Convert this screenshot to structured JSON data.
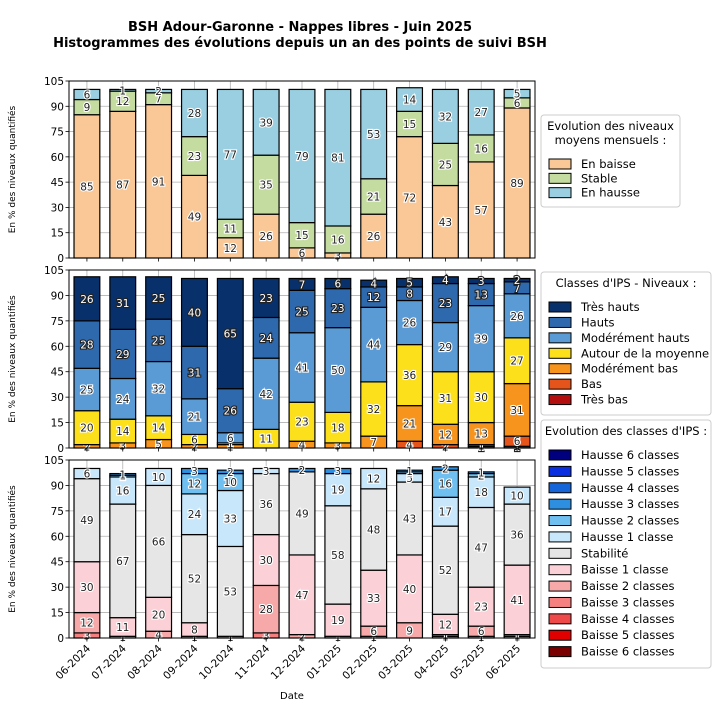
{
  "title_line1": "BSH Adour-Garonne - Nappes libres - Juin 2025",
  "title_line2": "Histogrammes des évolutions depuis un an des points de suivi BSH",
  "chart_data": [
    {
      "type": "bar",
      "stacked": true,
      "ylabel": "En % des niveaux quantifiés",
      "ylim": [
        0,
        105
      ],
      "yticks": [
        0,
        15,
        30,
        45,
        60,
        75,
        90,
        105
      ],
      "grid": true,
      "legend_title": "Evolution des niveaux\nmoyens mensuels :",
      "legend_position": "right",
      "categories": [
        "06-2024",
        "07-2024",
        "08-2024",
        "09-2024",
        "10-2024",
        "11-2024",
        "12-2024",
        "01-2025",
        "02-2025",
        "03-2025",
        "04-2025",
        "05-2025",
        "06-2025"
      ],
      "series": [
        {
          "name": "En baisse",
          "color": "#f9c896",
          "values": [
            85,
            87,
            91,
            49,
            12,
            26,
            6,
            3,
            26,
            72,
            43,
            57,
            89
          ]
        },
        {
          "name": "Stable",
          "color": "#c5dca0",
          "values": [
            9,
            12,
            7,
            23,
            11,
            35,
            15,
            16,
            21,
            15,
            25,
            16,
            6
          ]
        },
        {
          "name": "En hausse",
          "color": "#99cfe0",
          "values": [
            6,
            1,
            2,
            28,
            77,
            39,
            79,
            81,
            53,
            14,
            32,
            27,
            5
          ]
        }
      ]
    },
    {
      "type": "bar",
      "stacked": true,
      "ylabel": "En % des niveaux quantifiés",
      "ylim": [
        0,
        105
      ],
      "yticks": [
        0,
        15,
        30,
        45,
        60,
        75,
        90,
        105
      ],
      "grid": true,
      "legend_title": "Classes d'IPS - Niveaux :",
      "legend_position": "right",
      "categories": [
        "06-2024",
        "07-2024",
        "08-2024",
        "09-2024",
        "10-2024",
        "11-2024",
        "12-2024",
        "01-2025",
        "02-2025",
        "03-2025",
        "04-2025",
        "05-2025",
        "06-2025"
      ],
      "series": [
        {
          "name": "Très bas",
          "color": "#b40f0f",
          "values": [
            0,
            0,
            0,
            0,
            0,
            0,
            0,
            0,
            0,
            0,
            0,
            1,
            1
          ]
        },
        {
          "name": "Bas",
          "color": "#e4541b",
          "values": [
            0,
            0,
            0,
            0,
            0,
            0,
            0,
            0,
            0,
            4,
            2,
            1,
            6
          ]
        },
        {
          "name": "Modérément bas",
          "color": "#f7941d",
          "values": [
            2,
            3,
            5,
            2,
            2,
            0,
            4,
            3,
            7,
            21,
            12,
            13,
            31
          ]
        },
        {
          "name": "Autour de la moyenne",
          "color": "#fde01c",
          "values": [
            20,
            14,
            14,
            6,
            1,
            11,
            23,
            18,
            32,
            36,
            31,
            30,
            27
          ]
        },
        {
          "name": "Modérément hauts",
          "color": "#5a9bd5",
          "values": [
            25,
            24,
            32,
            21,
            6,
            42,
            41,
            50,
            44,
            26,
            29,
            39,
            26
          ]
        },
        {
          "name": "Hauts",
          "color": "#2f69ad",
          "values": [
            28,
            29,
            25,
            31,
            26,
            24,
            25,
            23,
            12,
            8,
            23,
            13,
            7
          ]
        },
        {
          "name": "Très hauts",
          "color": "#08306b",
          "values": [
            26,
            31,
            25,
            40,
            65,
            23,
            7,
            6,
            4,
            5,
            4,
            3,
            2
          ]
        }
      ]
    },
    {
      "type": "bar",
      "stacked": true,
      "xlabel": "Date",
      "ylabel": "En % des niveaux quantifiés",
      "ylim": [
        0,
        105
      ],
      "yticks": [
        0,
        15,
        30,
        45,
        60,
        75,
        90,
        105
      ],
      "grid": true,
      "legend_title": "Evolution des classes d'IPS :",
      "legend_position": "right",
      "categories": [
        "06-2024",
        "07-2024",
        "08-2024",
        "09-2024",
        "10-2024",
        "11-2024",
        "12-2024",
        "01-2025",
        "02-2025",
        "03-2025",
        "04-2025",
        "05-2025",
        "06-2025"
      ],
      "series": [
        {
          "name": "Baisse 6 classes",
          "color": "#7a0000",
          "values": [
            0,
            0,
            0,
            0,
            0,
            0,
            0,
            0,
            0,
            0,
            0,
            0,
            0
          ]
        },
        {
          "name": "Baisse 5 classes",
          "color": "#e00000",
          "values": [
            0,
            0,
            0,
            0,
            0,
            0,
            0,
            0,
            0,
            0,
            0,
            0,
            0
          ]
        },
        {
          "name": "Baisse 4 classes",
          "color": "#ef4a4a",
          "values": [
            0,
            0,
            0,
            0,
            0,
            0,
            0,
            0,
            0,
            0,
            0,
            0,
            0
          ]
        },
        {
          "name": "Baisse 3 classes",
          "color": "#f58080",
          "values": [
            3,
            0,
            0,
            1,
            1,
            3,
            0,
            1,
            1,
            0,
            1,
            1,
            1
          ]
        },
        {
          "name": "Baisse 2 classes",
          "color": "#f7a8a8",
          "values": [
            12,
            1,
            4,
            0,
            0,
            28,
            2,
            0,
            6,
            9,
            1,
            6,
            1
          ]
        },
        {
          "name": "Baisse 1 classe",
          "color": "#fbd0d6",
          "values": [
            30,
            11,
            20,
            8,
            0,
            30,
            47,
            19,
            33,
            40,
            12,
            23,
            41
          ]
        },
        {
          "name": "Stabilité",
          "color": "#e6e6e6",
          "values": [
            49,
            67,
            66,
            52,
            53,
            36,
            49,
            58,
            48,
            43,
            52,
            47,
            36
          ]
        },
        {
          "name": "Hausse 1 classe",
          "color": "#c9e7fb",
          "values": [
            6,
            16,
            10,
            24,
            33,
            3,
            0,
            19,
            12,
            5,
            17,
            18,
            10
          ]
        },
        {
          "name": "Hausse 2 classes",
          "color": "#6fbff0",
          "values": [
            0,
            1,
            0,
            12,
            10,
            0,
            0,
            0,
            0,
            1,
            16,
            2,
            0
          ]
        },
        {
          "name": "Hausse 3 classes",
          "color": "#2e8fe0",
          "values": [
            0,
            1,
            0,
            3,
            2,
            0,
            2,
            3,
            0,
            1,
            2,
            1,
            0
          ]
        },
        {
          "name": "Hausse 4 classes",
          "color": "#1565d8",
          "values": [
            0,
            0,
            0,
            0,
            0,
            0,
            0,
            0,
            0,
            0,
            0,
            0,
            0
          ]
        },
        {
          "name": "Hausse 5 classes",
          "color": "#0a2ee0",
          "values": [
            0,
            0,
            0,
            0,
            0,
            0,
            0,
            0,
            0,
            0,
            0,
            0,
            0
          ]
        },
        {
          "name": "Hausse 6 classes",
          "color": "#00007f",
          "values": [
            0,
            0,
            0,
            0,
            0,
            0,
            0,
            0,
            0,
            0,
            0,
            0,
            0
          ]
        }
      ]
    }
  ]
}
